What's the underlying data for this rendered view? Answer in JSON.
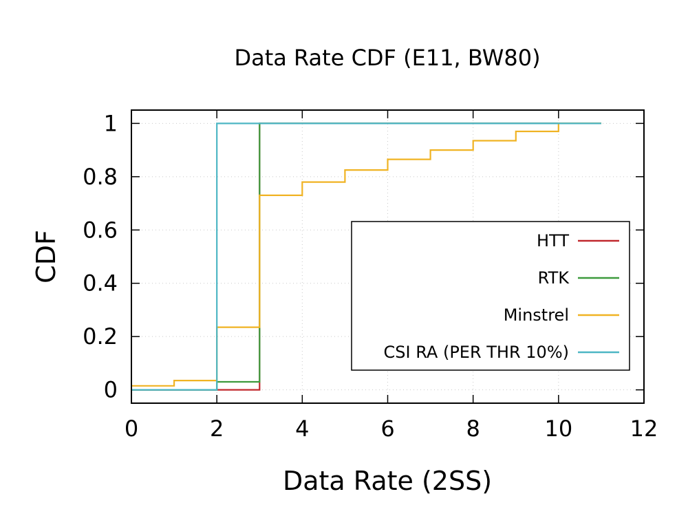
{
  "chart_data": {
    "type": "line",
    "step": true,
    "title": "Data Rate CDF (E11, BW80)",
    "xlabel": "Data Rate (2SS)",
    "ylabel": "CDF",
    "xlim": [
      0,
      12
    ],
    "ylim": [
      -0.05,
      1.05
    ],
    "xticks": [
      0,
      2,
      4,
      6,
      8,
      10,
      12
    ],
    "xtick_labels": [
      "0",
      "2",
      "4",
      "6",
      "8",
      "10",
      "12"
    ],
    "yticks": [
      0,
      0.2,
      0.4,
      0.6,
      0.8,
      1
    ],
    "ytick_labels": [
      "0",
      "0.2",
      "0.4",
      "0.6",
      "0.8",
      "1"
    ],
    "grid": true,
    "legend_position": "lower-right",
    "series": [
      {
        "name": "HTT",
        "color": "#c0282d",
        "points": [
          [
            0,
            0
          ],
          [
            3,
            0
          ],
          [
            3,
            1
          ],
          [
            11,
            1
          ]
        ]
      },
      {
        "name": "RTK",
        "color": "#3c9a3c",
        "points": [
          [
            0,
            0
          ],
          [
            2,
            0
          ],
          [
            2,
            0.03
          ],
          [
            3,
            0.03
          ],
          [
            3,
            1
          ],
          [
            11,
            1
          ]
        ]
      },
      {
        "name": "Minstrel",
        "color": "#f0b323",
        "points": [
          [
            0,
            0.015
          ],
          [
            1,
            0.015
          ],
          [
            1,
            0.035
          ],
          [
            2,
            0.035
          ],
          [
            2,
            0.235
          ],
          [
            3,
            0.235
          ],
          [
            3,
            0.73
          ],
          [
            4,
            0.73
          ],
          [
            4,
            0.78
          ],
          [
            5,
            0.78
          ],
          [
            5,
            0.825
          ],
          [
            6,
            0.825
          ],
          [
            6,
            0.865
          ],
          [
            7,
            0.865
          ],
          [
            7,
            0.9
          ],
          [
            8,
            0.9
          ],
          [
            8,
            0.935
          ],
          [
            9,
            0.935
          ],
          [
            9,
            0.97
          ],
          [
            10,
            0.97
          ],
          [
            10,
            1
          ],
          [
            11,
            1
          ]
        ]
      },
      {
        "name": "CSI RA (PER THR 10%)",
        "color": "#4db6c4",
        "points": [
          [
            0,
            0
          ],
          [
            2,
            0
          ],
          [
            2,
            1
          ],
          [
            11,
            1
          ]
        ]
      }
    ]
  }
}
